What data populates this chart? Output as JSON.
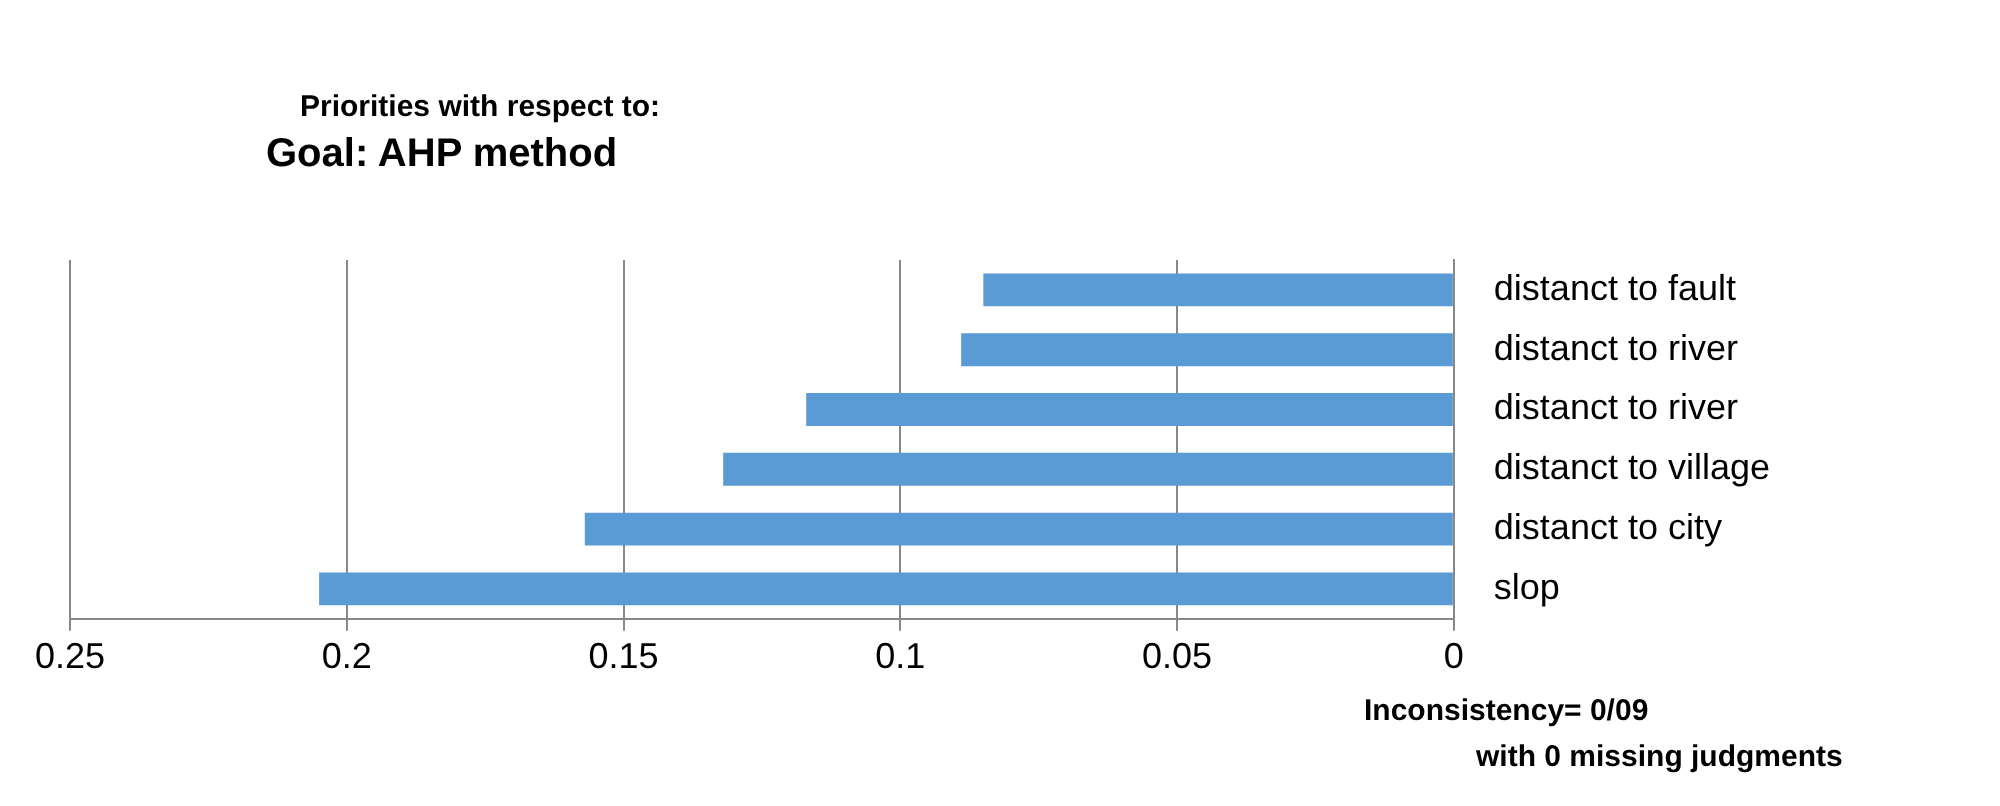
{
  "chart_data": {
    "type": "bar",
    "orientation": "horizontal",
    "title": "Priorities with respect to:",
    "subtitle": "Goal: AHP method",
    "categories": [
      "distanct to fault",
      "distanct to river",
      "distanct to river",
      "distanct to village",
      "distanct to city",
      "slop"
    ],
    "values": [
      0.085,
      0.089,
      0.117,
      0.132,
      0.157,
      0.205
    ],
    "color": "#5b9bd5",
    "xlim": [
      0.25,
      0
    ],
    "xticks": [
      0.25,
      0.2,
      0.15,
      0.1,
      0.05,
      0
    ],
    "grid": "x",
    "legend": false,
    "annotations": [
      "Inconsistency= 0/09",
      "with 0 missing judgments"
    ]
  }
}
